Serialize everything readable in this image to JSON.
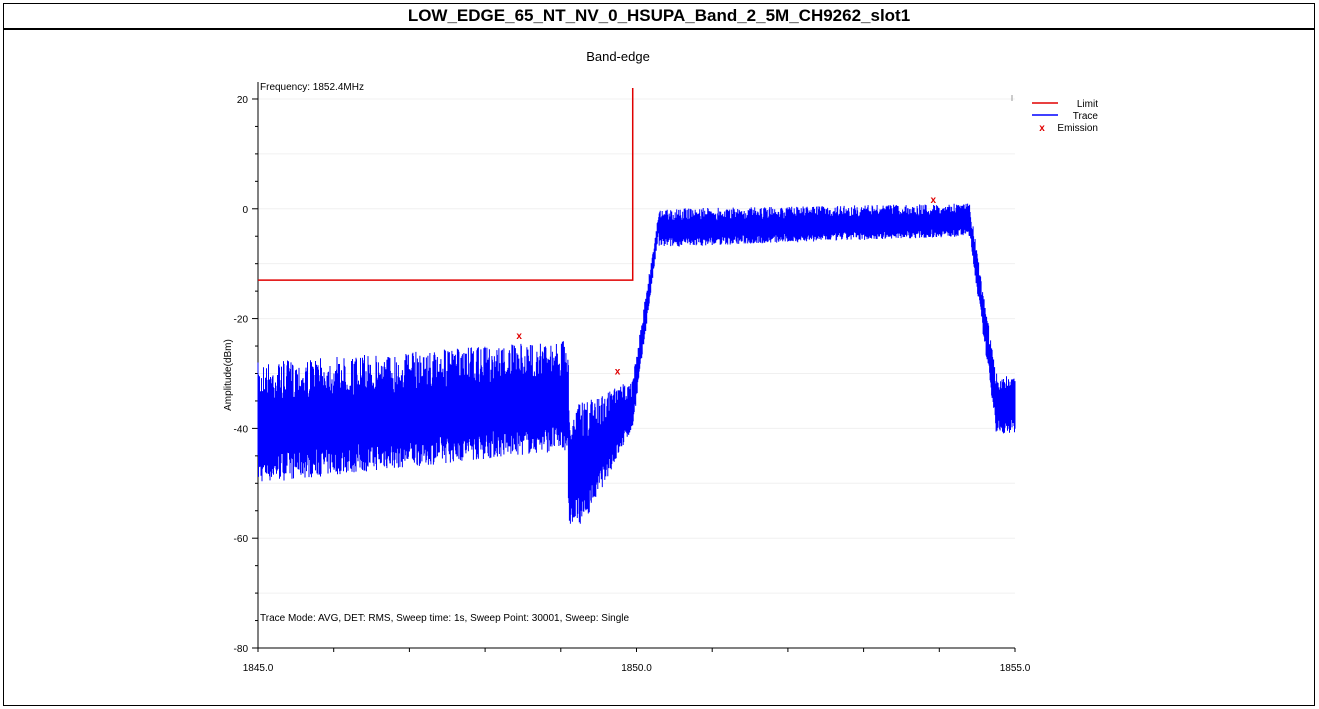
{
  "header": {
    "title": "LOW_EDGE_65_NT_NV_0_HSUPA_Band_2_5M_CH9262_slot1"
  },
  "chart_data": {
    "type": "line",
    "title": "Band-edge",
    "xlabel": "",
    "ylabel": "Amplitude(dBm)",
    "xlim": [
      1845.0,
      1855.0
    ],
    "ylim": [
      -80,
      22
    ],
    "x_ticks": [
      "1845.0",
      "1850.0",
      "1855.0"
    ],
    "y_ticks": [
      "20",
      "0",
      "-20",
      "-40",
      "-60",
      "-80"
    ],
    "frequency_label": "Frequency: 1852.4MHz",
    "footer_note": "Trace Mode: AVG, DET: RMS, Sweep time: 1s, Sweep Point: 30001, Sweep: Single",
    "legend": {
      "placement": "top-right",
      "entries": [
        "Limit",
        "Trace",
        "Emission"
      ]
    },
    "colors": {
      "limit": "#e00000",
      "trace": "#0000ff",
      "emission": "#e00000"
    },
    "series": [
      {
        "name": "Limit",
        "x": [
          1845.0,
          1849.95,
          1849.95
        ],
        "y": [
          -13,
          -13,
          22
        ]
      },
      {
        "name": "Trace",
        "segments": [
          {
            "x0": 1845.0,
            "x1": 1849.1,
            "top0": -28,
            "top1": -24,
            "bot0": -50,
            "bot1": -44
          },
          {
            "x0": 1849.1,
            "x1": 1849.35,
            "top0": -36,
            "top1": -35,
            "bot0": -58,
            "bot1": -57
          },
          {
            "x0": 1849.35,
            "x1": 1849.95,
            "top0": -35,
            "top1": -31,
            "bot0": -56,
            "bot1": -40
          },
          {
            "x0": 1849.95,
            "x1": 1850.3,
            "top0": -31,
            "top1": 0,
            "bot0": -40,
            "bot1": -4
          },
          {
            "x0": 1850.3,
            "x1": 1854.4,
            "top0": 0,
            "top1": 1,
            "bot0": -7,
            "bot1": -5
          },
          {
            "x0": 1854.4,
            "x1": 1854.75,
            "top0": 1,
            "top1": -30,
            "bot0": -5,
            "bot1": -40
          },
          {
            "x0": 1854.75,
            "x1": 1855.0,
            "top0": -30,
            "top1": -30,
            "bot0": -41,
            "bot1": -41
          }
        ]
      },
      {
        "name": "Emission",
        "x": [
          1848.45,
          1849.75,
          1853.92
        ],
        "y": [
          -23.0,
          -29.5,
          1.8
        ]
      }
    ]
  }
}
